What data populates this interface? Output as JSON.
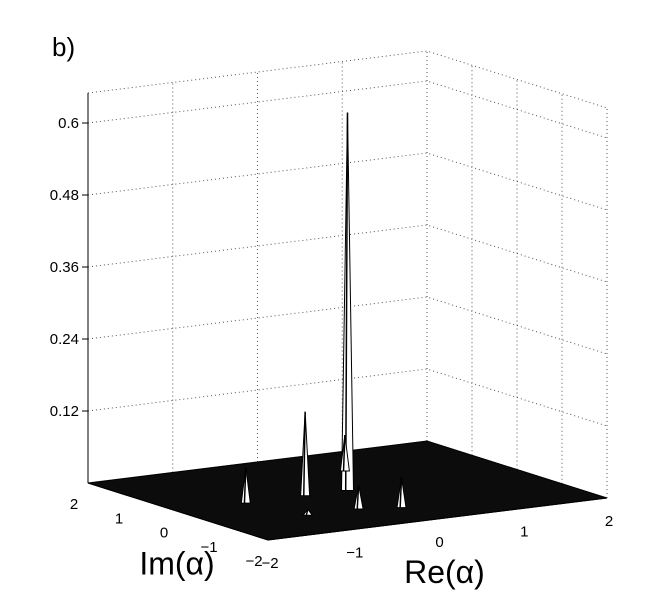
{
  "panel_label": "b)",
  "chart_data": {
    "type": "surface3d",
    "title": "",
    "xlabel": "Re(α)",
    "ylabel": "Im(α)",
    "zlabel": "",
    "xlim": [
      -2,
      2
    ],
    "ylim": [
      -2,
      2
    ],
    "zlim": [
      0,
      0.65
    ],
    "x_ticks": [
      -2,
      -1,
      0,
      1,
      2
    ],
    "y_ticks": [
      -2,
      -1,
      0,
      1,
      2
    ],
    "z_ticks": [
      0.12,
      0.24,
      0.36,
      0.48,
      0.6
    ],
    "x_tick_labels": [
      "−2",
      "−1",
      "0",
      "1",
      "2"
    ],
    "y_tick_labels": [
      "−2",
      "−1",
      "0",
      "1",
      "2"
    ],
    "z_tick_labels": [
      "0.12",
      "0.24",
      "0.36",
      "0.48",
      "0.6"
    ],
    "grid": true,
    "peaks": [
      {
        "re": 0.0,
        "im": 0.0,
        "z": 0.63
      },
      {
        "re": -0.5,
        "im": 0.0,
        "z": 0.14
      },
      {
        "re": 0.5,
        "im": 1.0,
        "z": 0.06
      },
      {
        "re": 0.0,
        "im": -1.2,
        "z": 0.05
      },
      {
        "re": -0.4,
        "im": -1.0,
        "z": 0.04
      },
      {
        "re": -1.2,
        "im": 0.0,
        "z": 0.06
      },
      {
        "re": -1.0,
        "im": -1.0,
        "z": 0.01
      }
    ]
  }
}
